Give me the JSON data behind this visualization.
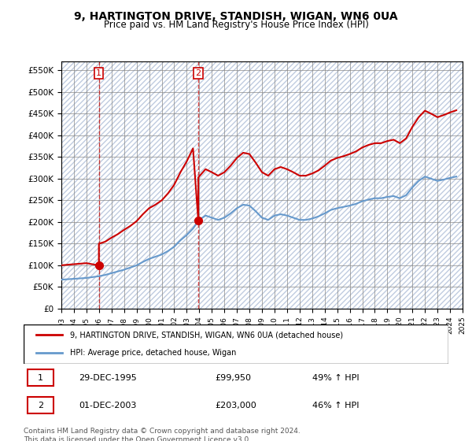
{
  "title": "9, HARTINGTON DRIVE, STANDISH, WIGAN, WN6 0UA",
  "subtitle": "Price paid vs. HM Land Registry's House Price Index (HPI)",
  "legend_label_red": "9, HARTINGTON DRIVE, STANDISH, WIGAN, WN6 0UA (detached house)",
  "legend_label_blue": "HPI: Average price, detached house, Wigan",
  "transaction_1_date": "29-DEC-1995",
  "transaction_1_price": 99950,
  "transaction_1_hpi": "49% ↑ HPI",
  "transaction_2_date": "01-DEC-2003",
  "transaction_2_price": 203000,
  "transaction_2_hpi": "46% ↑ HPI",
  "footer": "Contains HM Land Registry data © Crown copyright and database right 2024.\nThis data is licensed under the Open Government Licence v3.0.",
  "ylim_min": 0,
  "ylim_max": 570000,
  "red_color": "#cc0000",
  "blue_color": "#6699cc",
  "background_hatch_color": "#d0d8e8",
  "grid_color": "#aaaaaa",
  "purchase_dates": [
    1995.99,
    2003.92
  ],
  "purchase_prices": [
    99950,
    203000
  ],
  "hpi_years": [
    1993.0,
    1993.5,
    1994.0,
    1994.5,
    1995.0,
    1995.5,
    1996.0,
    1996.5,
    1997.0,
    1997.5,
    1998.0,
    1998.5,
    1999.0,
    1999.5,
    2000.0,
    2000.5,
    2001.0,
    2001.5,
    2002.0,
    2002.5,
    2003.0,
    2003.5,
    2004.0,
    2004.5,
    2005.0,
    2005.5,
    2006.0,
    2006.5,
    2007.0,
    2007.5,
    2008.0,
    2008.5,
    2009.0,
    2009.5,
    2010.0,
    2010.5,
    2011.0,
    2011.5,
    2012.0,
    2012.5,
    2013.0,
    2013.5,
    2014.0,
    2014.5,
    2015.0,
    2015.5,
    2016.0,
    2016.5,
    2017.0,
    2017.5,
    2018.0,
    2018.5,
    2019.0,
    2019.5,
    2020.0,
    2020.5,
    2021.0,
    2021.5,
    2022.0,
    2022.5,
    2023.0,
    2023.5,
    2024.0,
    2024.5
  ],
  "hpi_values": [
    67000,
    68000,
    69000,
    70000,
    71000,
    73000,
    75000,
    78000,
    82000,
    86000,
    90000,
    95000,
    100000,
    108000,
    115000,
    120000,
    125000,
    133000,
    143000,
    158000,
    170000,
    185000,
    205000,
    215000,
    210000,
    205000,
    210000,
    220000,
    232000,
    240000,
    238000,
    225000,
    210000,
    205000,
    215000,
    218000,
    215000,
    210000,
    205000,
    205000,
    208000,
    213000,
    220000,
    228000,
    232000,
    235000,
    238000,
    242000,
    248000,
    252000,
    255000,
    255000,
    258000,
    260000,
    255000,
    262000,
    280000,
    295000,
    305000,
    300000,
    295000,
    298000,
    302000,
    305000
  ],
  "red_line_years": [
    1993.0,
    1993.5,
    1994.0,
    1994.5,
    1995.0,
    1995.5,
    1995.99,
    1995.99,
    1996.5,
    1997.0,
    1997.5,
    1998.0,
    1998.5,
    1999.0,
    1999.5,
    2000.0,
    2000.5,
    2001.0,
    2001.5,
    2002.0,
    2002.5,
    2003.0,
    2003.5,
    2003.92,
    2003.92,
    2004.5,
    2005.0,
    2005.5,
    2006.0,
    2006.5,
    2007.0,
    2007.5,
    2008.0,
    2008.5,
    2009.0,
    2009.5,
    2010.0,
    2010.5,
    2011.0,
    2011.5,
    2012.0,
    2012.5,
    2013.0,
    2013.5,
    2014.0,
    2014.5,
    2015.0,
    2015.5,
    2016.0,
    2016.5,
    2017.0,
    2017.5,
    2018.0,
    2018.5,
    2019.0,
    2019.5,
    2020.0,
    2020.5,
    2021.0,
    2021.5,
    2022.0,
    2022.5,
    2023.0,
    2023.5,
    2024.0,
    2024.5
  ],
  "red_line_values": [
    100220,
    101500,
    102700,
    103900,
    105100,
    102500,
    99950,
    149920,
    154700,
    164000,
    172000,
    182000,
    191000,
    202000,
    218000,
    232000,
    240000,
    250000,
    266000,
    286000,
    315000,
    340000,
    370000,
    203000,
    303000,
    322000,
    315000,
    307000,
    315000,
    330000,
    348000,
    360000,
    357000,
    337000,
    315000,
    307000,
    322000,
    327000,
    322000,
    315000,
    307000,
    307000,
    312000,
    319000,
    330000,
    342000,
    348000,
    352000,
    357000,
    363000,
    372000,
    378000,
    382000,
    382000,
    387000,
    390000,
    382000,
    393000,
    420000,
    442000,
    457000,
    450000,
    442000,
    447000,
    453000,
    458000
  ]
}
